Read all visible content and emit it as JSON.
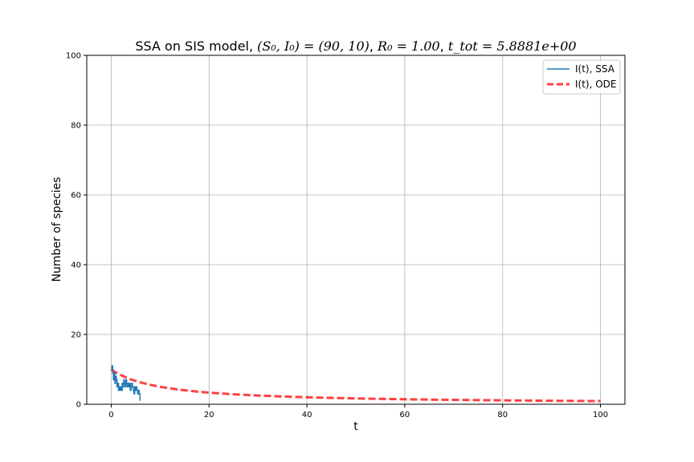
{
  "chart_data": {
    "type": "line",
    "title": {
      "prefix": "SSA on SIS model, ",
      "math_pairs": "(S₀, I₀) = (90, 10)",
      "r0": "R₀ = 1.00",
      "ttot": "t_tot = 5.8881e+00"
    },
    "xlabel": "t",
    "ylabel": "Number of species",
    "xlim": [
      -5,
      105
    ],
    "ylim": [
      0,
      100
    ],
    "xticks": [
      0,
      20,
      40,
      60,
      80,
      100
    ],
    "yticks": [
      0,
      20,
      40,
      60,
      80,
      100
    ],
    "grid": true,
    "legend_position": "top-right",
    "series": [
      {
        "name": "I(t), SSA",
        "color": "#1f77b4",
        "style": "solid",
        "x": [
          0,
          0.15,
          0.3,
          0.45,
          0.6,
          0.75,
          0.9,
          1.05,
          1.2,
          1.35,
          1.5,
          1.65,
          1.8,
          1.95,
          2.1,
          2.25,
          2.4,
          2.55,
          2.7,
          2.85,
          3.0,
          3.15,
          3.3,
          3.45,
          3.6,
          3.75,
          3.9,
          4.05,
          4.2,
          4.35,
          4.5,
          4.65,
          4.8,
          4.95,
          5.1,
          5.25,
          5.4,
          5.55,
          5.7,
          5.89
        ],
        "y": [
          10,
          11,
          9,
          7,
          9,
          6,
          8,
          7,
          5,
          6,
          4,
          5,
          4,
          5,
          4,
          6,
          5,
          7,
          6,
          5,
          7,
          6,
          5,
          6,
          5,
          6,
          4,
          5,
          6,
          5,
          4,
          3,
          5,
          4,
          5,
          4,
          3,
          4,
          3,
          1
        ]
      },
      {
        "name": "I(t), ODE",
        "color": "#ff0000",
        "style": "dashed",
        "x": [
          0,
          1,
          2,
          3,
          4,
          5,
          6,
          8,
          10,
          12,
          14,
          16,
          18,
          20,
          25,
          30,
          35,
          40,
          45,
          50,
          55,
          60,
          65,
          70,
          75,
          80,
          85,
          90,
          95,
          100
        ],
        "y": [
          10,
          9.09,
          8.33,
          7.69,
          7.14,
          6.67,
          6.25,
          5.56,
          5.0,
          4.55,
          4.17,
          3.85,
          3.57,
          3.33,
          2.86,
          2.5,
          2.22,
          2.0,
          1.82,
          1.67,
          1.54,
          1.43,
          1.33,
          1.25,
          1.18,
          1.11,
          1.05,
          1.0,
          0.95,
          0.91
        ]
      }
    ]
  }
}
